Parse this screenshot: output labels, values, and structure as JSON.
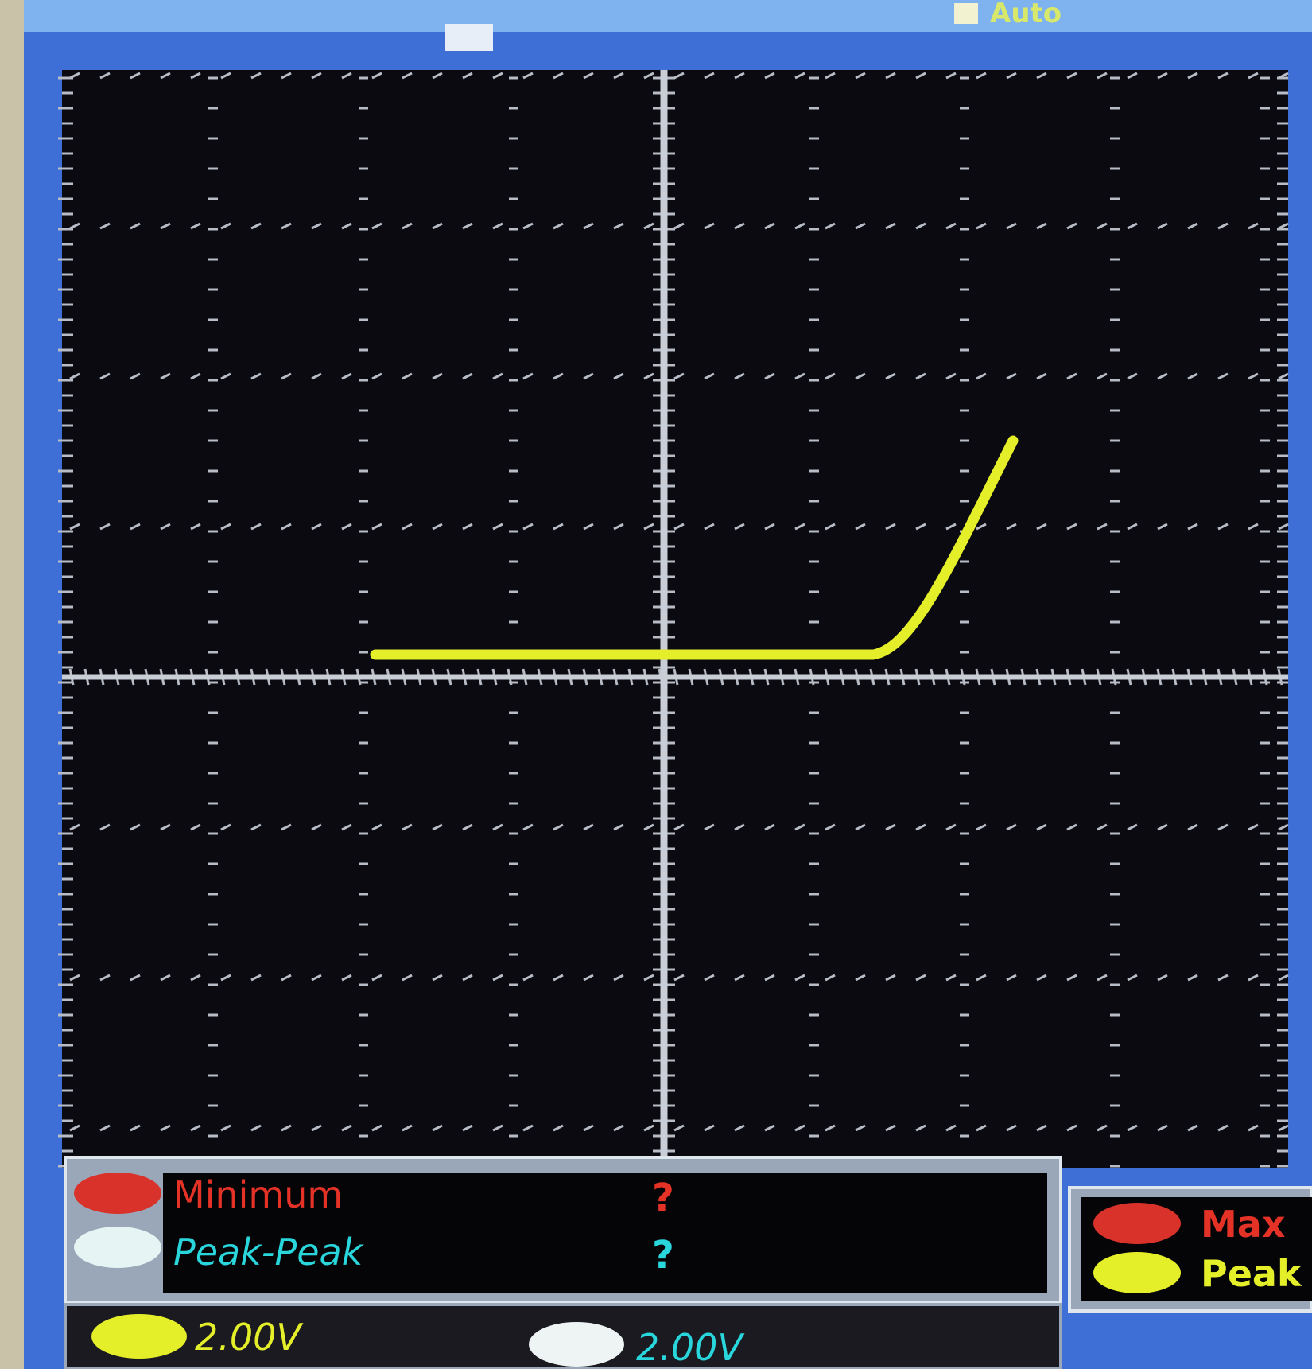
{
  "header": {
    "trigger_mode": "Auto"
  },
  "measurements": [
    {
      "label": "Minimum",
      "value": "?"
    },
    {
      "label": "Peak-Peak",
      "value": "?"
    }
  ],
  "side_measurements": [
    {
      "label": "Max"
    },
    {
      "label": "Peak"
    }
  ],
  "channels": [
    {
      "scale": "2.00V"
    },
    {
      "scale": "2.00V"
    }
  ]
}
